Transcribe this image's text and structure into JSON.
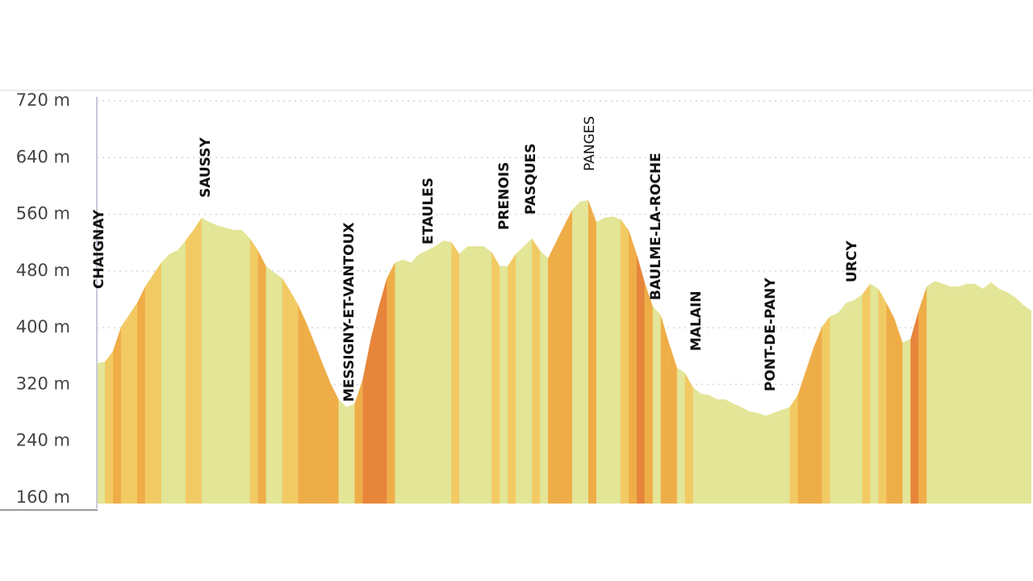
{
  "chart_data": {
    "type": "area",
    "color": "#e3e597",
    "ylim": [
      160,
      720
    ],
    "yticks": [
      {
        "value": 160,
        "label": "160 m"
      },
      {
        "value": 240,
        "label": "240 m"
      },
      {
        "value": 320,
        "label": "320 m"
      },
      {
        "value": 400,
        "label": "400 m"
      },
      {
        "value": 480,
        "label": "480 m"
      },
      {
        "value": 560,
        "label": "560 m"
      },
      {
        "value": 640,
        "label": "640 m"
      },
      {
        "value": 720,
        "label": "720 m"
      }
    ],
    "grid": true,
    "values": [
      350,
      352,
      367,
      401,
      418,
      435,
      458,
      475,
      492,
      504,
      509,
      523,
      538,
      555,
      549,
      544,
      541,
      538,
      538,
      526,
      509,
      487,
      478,
      470,
      452,
      432,
      407,
      379,
      350,
      322,
      299,
      288,
      293,
      327,
      384,
      430,
      470,
      492,
      496,
      492,
      504,
      509,
      515,
      523,
      521,
      504,
      515,
      515,
      515,
      507,
      487,
      487,
      504,
      515,
      526,
      509,
      498,
      521,
      544,
      566,
      578,
      580,
      549,
      555,
      557,
      553,
      538,
      504,
      464,
      430,
      418,
      379,
      344,
      336,
      316,
      307,
      305,
      299,
      299,
      293,
      288,
      282,
      280,
      276,
      280,
      284,
      288,
      305,
      339,
      373,
      401,
      416,
      421,
      435,
      439,
      447,
      462,
      455,
      435,
      413,
      379,
      384,
      424,
      458,
      466,
      462,
      458,
      458,
      462,
      462,
      455,
      464,
      455,
      450,
      443,
      432,
      424
    ],
    "annotations": [
      "CHAIGNAY",
      "SAUSSY",
      "MESSIGNY-ET-VANTOUX",
      "ETAULES",
      "PRENOIS",
      "PASQUES",
      "PANGES",
      "BAULME-LA-ROCHE",
      "MALAIN",
      "PONT-DE-PANY",
      "URCY"
    ]
  }
}
